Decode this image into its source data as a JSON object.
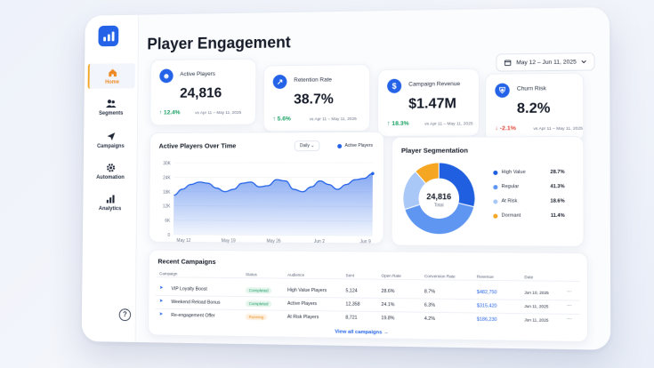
{
  "app": {
    "title": "Player Engagement",
    "date_range": "May 12 – Jun 11, 2025"
  },
  "sidebar": {
    "items": [
      {
        "label": "Home",
        "icon": "home-icon",
        "active": true
      },
      {
        "label": "Segments",
        "icon": "users-icon"
      },
      {
        "label": "Campaigns",
        "icon": "send-icon"
      },
      {
        "label": "Automation",
        "icon": "gear-icon"
      },
      {
        "label": "Analytics",
        "icon": "bar-chart-icon"
      }
    ],
    "help": "?"
  },
  "kpis": [
    {
      "label": "Active Players",
      "value": "24,816",
      "delta": "12.4%",
      "direction": "up",
      "compare": "vs Apr 11 – May 11, 2025",
      "icon": "users-icon"
    },
    {
      "label": "Retention Rate",
      "value": "38.7%",
      "delta": "5.6%",
      "direction": "up",
      "compare": "vs Apr 11 – May 11, 2025",
      "icon": "trend-icon"
    },
    {
      "label": "Campaign Revenue",
      "value": "$1.47M",
      "delta": "18.3%",
      "direction": "up",
      "compare": "vs Apr 11 – May 11, 2025",
      "icon": "dollar-icon"
    },
    {
      "label": "Churn Risk",
      "value": "8.2%",
      "delta": "-2.1%",
      "direction": "down",
      "compare": "vs Apr 11 – May 11, 2025",
      "icon": "shield-icon"
    }
  ],
  "colors": {
    "accent": "#2463e8",
    "positive": "#16a061",
    "negative": "#e0493a",
    "warning": "#f5a623"
  },
  "chart_data": [
    {
      "type": "area",
      "title": "Active Players Over Time",
      "period": "Daily",
      "series": [
        {
          "name": "Active Players",
          "values": [
            16.5,
            19,
            21,
            22,
            21.5,
            19.5,
            18,
            19,
            21.5,
            22,
            20,
            20.5,
            23,
            22.5,
            19,
            18,
            20,
            22.5,
            21,
            19,
            21,
            23,
            23.5,
            25.5
          ]
        }
      ],
      "x_ticks": [
        "May 12",
        "May 19",
        "May 26",
        "Jun 2",
        "Jun 9"
      ],
      "y_ticks": [
        "0",
        "6K",
        "12K",
        "18K",
        "24K",
        "30K"
      ],
      "ylim": [
        0,
        30
      ]
    },
    {
      "type": "pie",
      "title": "Player Segmentation",
      "center_value": "24,816",
      "center_label": "Total",
      "labels": [
        "High Value",
        "Regular",
        "At Risk",
        "Dormant"
      ],
      "values": [
        28.7,
        41.3,
        18.6,
        11.4
      ],
      "display": [
        "28.7%",
        "41.3%",
        "18.6%",
        "11.4%"
      ],
      "colors": [
        "#1f5fe0",
        "#5e96f2",
        "#a9c8f8",
        "#f5a623"
      ]
    }
  ],
  "campaigns": {
    "title": "Recent Campaigns",
    "columns": [
      "Campaign",
      "Status",
      "Audience",
      "Sent",
      "Open Rate",
      "Conversion Rate",
      "Revenue",
      "Date"
    ],
    "rows": [
      {
        "name": "VIP Loyalty Boost",
        "status": "Completed",
        "audience": "High Value Players",
        "sent": "5,124",
        "open": "28.6%",
        "conv": "8.7%",
        "revenue": "$482,750",
        "date": "Jun 10, 2025"
      },
      {
        "name": "Weekend Reload Bonus",
        "status": "Completed",
        "audience": "Active Players",
        "sent": "12,358",
        "open": "24.1%",
        "conv": "6.3%",
        "revenue": "$315,420",
        "date": "Jun 11, 2025"
      },
      {
        "name": "Re-engagement Offer",
        "status": "Running",
        "audience": "At Risk Players",
        "sent": "8,721",
        "open": "19.8%",
        "conv": "4.2%",
        "revenue": "$186,230",
        "date": "Jun 11, 2025"
      }
    ],
    "view_all": "View all campaigns"
  }
}
